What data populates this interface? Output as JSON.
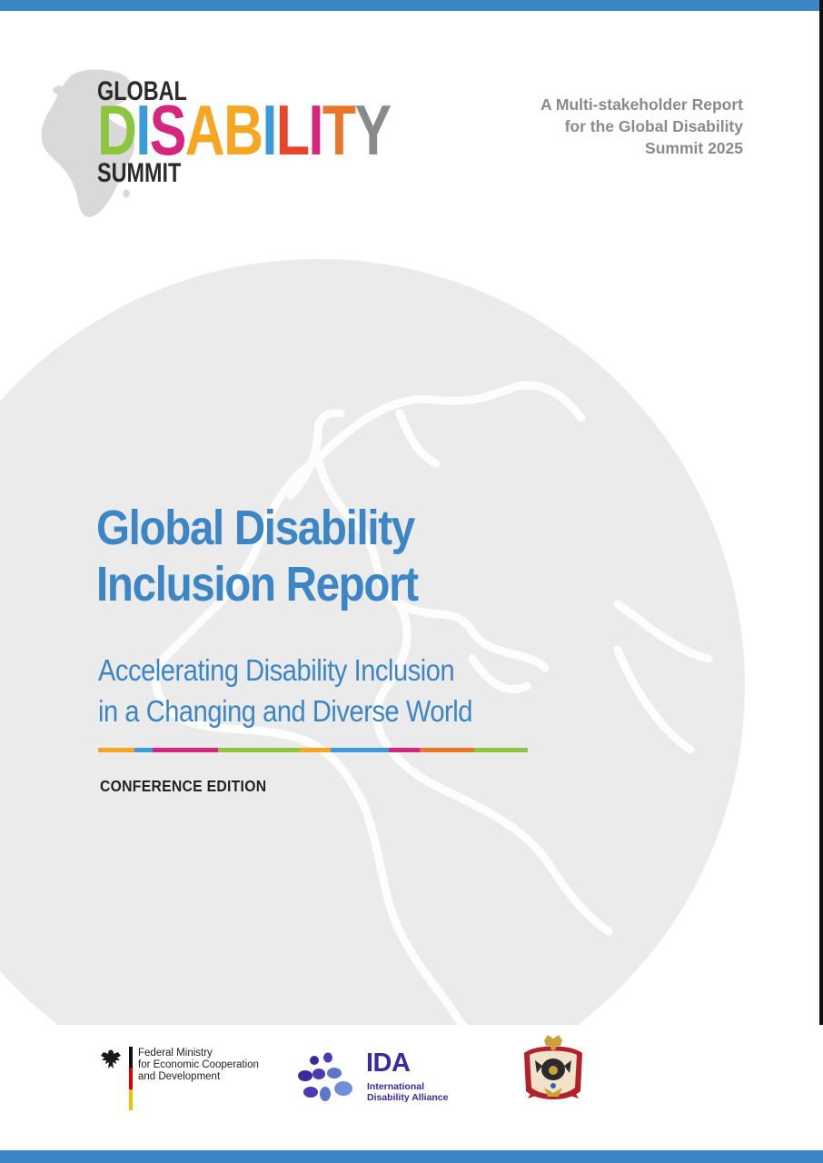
{
  "logo": {
    "line1": "GLOBAL",
    "line2_letters": [
      {
        "char": "D",
        "color": "#8cc63f"
      },
      {
        "char": "I",
        "color": "#3b9ad9"
      },
      {
        "char": "S",
        "color": "#d6257c"
      },
      {
        "char": "A",
        "color": "#f5a623"
      },
      {
        "char": "B",
        "color": "#f5a623"
      },
      {
        "char": "I",
        "color": "#3b9ad9"
      },
      {
        "char": "L",
        "color": "#e8452b"
      },
      {
        "char": "I",
        "color": "#d6257c"
      },
      {
        "char": "T",
        "color": "#e8762b"
      },
      {
        "char": "Y",
        "color": "#8a8a8a"
      }
    ],
    "line3": "SUMMIT"
  },
  "report_tag": {
    "lines": [
      "A Multi-stakeholder Report",
      "for the Global Disability",
      "Summit 2025"
    ]
  },
  "title": {
    "line1": "Global Disability",
    "line2": "Inclusion Report"
  },
  "subtitle": {
    "line1": "Accelerating Disability Inclusion",
    "line2": "in a Changing and Diverse World"
  },
  "edition": "CONFERENCE EDITION",
  "colors": {
    "frame": "#3d86c6",
    "title": "#3d86c6",
    "globe": "#ebebeb",
    "stripe": [
      "#f5a623",
      "#3b9ad9",
      "#d6257c",
      "#8cc63f",
      "#f5a623",
      "#3b9ad9",
      "#d6257c",
      "#e8762b",
      "#8cc63f"
    ]
  },
  "partners": {
    "bmz": {
      "lines": [
        "Federal Ministry",
        "for Economic Cooperation",
        "and Development"
      ],
      "icon": "eagle-emblem-icon"
    },
    "ida": {
      "name": "IDA",
      "sub_lines": [
        "International",
        "Disability Alliance"
      ],
      "icon": "ida-dots-icon"
    },
    "jordan": {
      "icon": "jordan-coat-of-arms-icon"
    }
  }
}
